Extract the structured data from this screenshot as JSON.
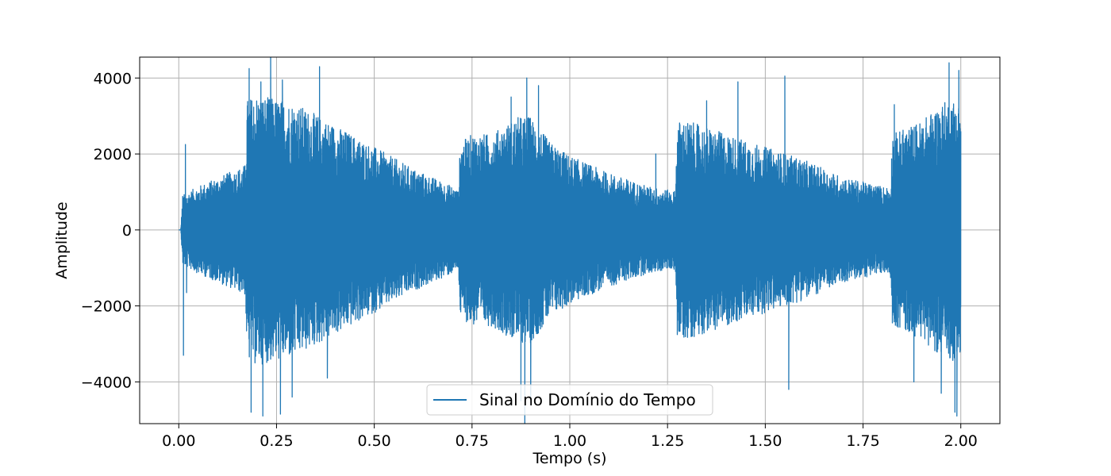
{
  "chart_data": {
    "type": "line",
    "title": "",
    "xlabel": "Tempo (s)",
    "ylabel": "Amplitude",
    "xlim": [
      -0.1,
      2.1
    ],
    "ylim": [
      -5100,
      4550
    ],
    "grid": true,
    "legend_position": "lower-center",
    "x_ticks": [
      0.0,
      0.25,
      0.5,
      0.75,
      1.0,
      1.25,
      1.5,
      1.75,
      2.0
    ],
    "x_tick_labels": [
      "0.00",
      "0.25",
      "0.50",
      "0.75",
      "1.00",
      "1.25",
      "1.50",
      "1.75",
      "2.00"
    ],
    "y_ticks": [
      -4000,
      -2000,
      0,
      2000,
      4000
    ],
    "y_tick_labels": [
      "−4000",
      "−2000",
      "0",
      "2000",
      "4000"
    ],
    "series": [
      {
        "name": "Sinal no Domínio do Tempo",
        "color": "#1f77b4",
        "x_range": [
          0.0,
          2.0
        ],
        "envelope_time": [
          0.0,
          0.005,
          0.01,
          0.05,
          0.1,
          0.15,
          0.17,
          0.175,
          0.2,
          0.25,
          0.3,
          0.4,
          0.5,
          0.6,
          0.7,
          0.715,
          0.72,
          0.75,
          0.8,
          0.87,
          0.9,
          0.95,
          1.0,
          1.1,
          1.2,
          1.26,
          1.27,
          1.275,
          1.3,
          1.4,
          1.5,
          1.6,
          1.7,
          1.8,
          1.82,
          1.825,
          1.85,
          1.9,
          1.95,
          1.98,
          2.0
        ],
        "envelope_amplitude": [
          0,
          0,
          800,
          1000,
          1200,
          1400,
          1500,
          3000,
          3100,
          3000,
          2900,
          2400,
          1900,
          1400,
          1000,
          900,
          2000,
          2200,
          2200,
          2600,
          2600,
          2000,
          1700,
          1300,
          1000,
          900,
          900,
          2500,
          2500,
          2200,
          1900,
          1600,
          1200,
          1000,
          1000,
          2200,
          2300,
          2500,
          2900,
          3000,
          2900
        ],
        "peaks": [
          {
            "x": 0.017,
            "y": 2250
          },
          {
            "x": 0.012,
            "y": -3300
          },
          {
            "x": 0.02,
            "y": -1650
          },
          {
            "x": 0.18,
            "y": 4250
          },
          {
            "x": 0.185,
            "y": -4800
          },
          {
            "x": 0.21,
            "y": 3900
          },
          {
            "x": 0.215,
            "y": -4900
          },
          {
            "x": 0.235,
            "y": 4550
          },
          {
            "x": 0.26,
            "y": -4850
          },
          {
            "x": 0.265,
            "y": 3950
          },
          {
            "x": 0.29,
            "y": -4400
          },
          {
            "x": 0.36,
            "y": 4300
          },
          {
            "x": 0.38,
            "y": -3900
          },
          {
            "x": 0.72,
            "y": -2100
          },
          {
            "x": 0.78,
            "y": 2300
          },
          {
            "x": 0.85,
            "y": 3500
          },
          {
            "x": 0.875,
            "y": -4500
          },
          {
            "x": 0.885,
            "y": -5100
          },
          {
            "x": 0.89,
            "y": 4000
          },
          {
            "x": 0.9,
            "y": -4600
          },
          {
            "x": 0.92,
            "y": 3800
          },
          {
            "x": 1.22,
            "y": 2000
          },
          {
            "x": 1.28,
            "y": 2600
          },
          {
            "x": 1.35,
            "y": 3400
          },
          {
            "x": 1.43,
            "y": 3900
          },
          {
            "x": 1.55,
            "y": 4050
          },
          {
            "x": 1.56,
            "y": -4200
          },
          {
            "x": 1.83,
            "y": 3300
          },
          {
            "x": 1.88,
            "y": -4000
          },
          {
            "x": 1.95,
            "y": -4300
          },
          {
            "x": 1.97,
            "y": 4400
          },
          {
            "x": 1.985,
            "y": -4800
          },
          {
            "x": 1.99,
            "y": -4900
          },
          {
            "x": 1.995,
            "y": 4200
          }
        ]
      }
    ]
  }
}
